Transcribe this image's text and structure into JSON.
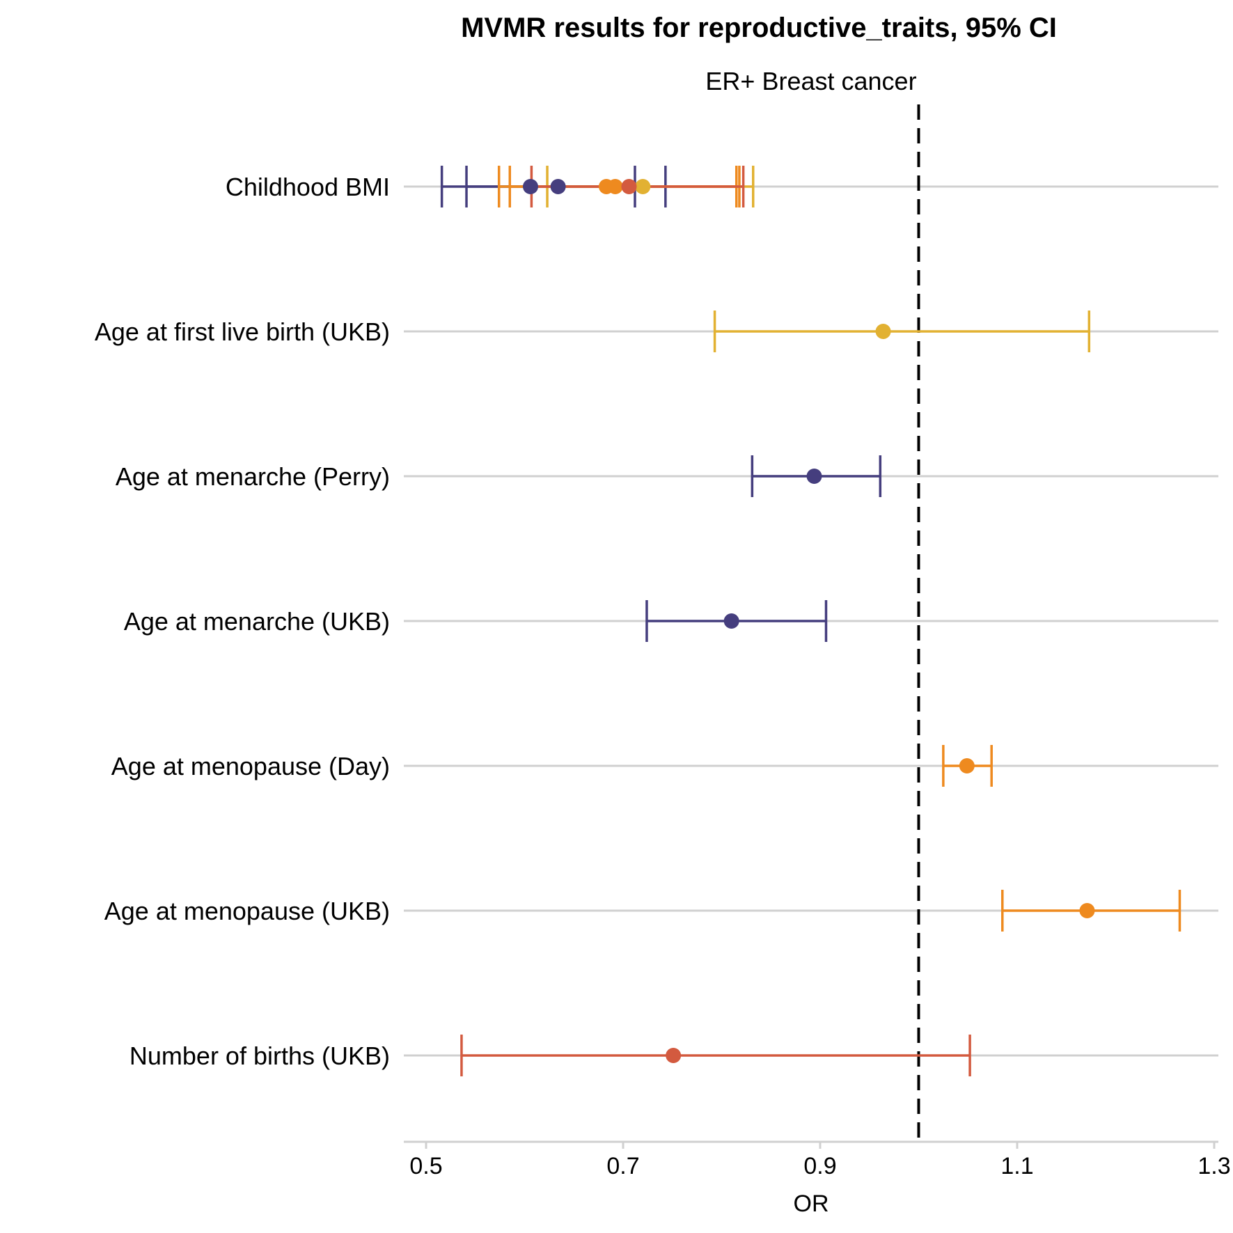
{
  "chart_data": {
    "type": "forest",
    "title": "MVMR results for reproductive_traits, 95% CI",
    "subtitle": "ER+ Breast cancer",
    "xlabel": "OR",
    "ylabel": "",
    "xlim": [
      0.48,
      1.3
    ],
    "x_ticks": [
      0.5,
      0.7,
      0.9,
      1.1,
      1.3
    ],
    "x_tick_labels": [
      "0.5",
      "0.7",
      "0.9",
      "1.1",
      "1.3"
    ],
    "reference_line": 1.0,
    "categories": [
      "Childhood BMI",
      "Age at first live birth (UKB)",
      "Age at menarche (Perry)",
      "Age at menarche (UKB)",
      "Age at menopause (Day)",
      "Age at menopause (UKB)",
      "Number of births (UKB)"
    ],
    "colors": {
      "Age at first live birth (UKB)": "#E2B132",
      "Age at menarche (Perry)": "#453E7E",
      "Age at menarche (UKB)": "#453E7E",
      "Age at menopause (Day)": "#EE8A1F",
      "Age at menopause (UKB)": "#EE8A1F",
      "Number of births (UKB)": "#D35A3F"
    },
    "points": [
      {
        "category": "Childhood BMI",
        "adjusted_for": "Age at first live birth (UKB)",
        "or": 0.72,
        "lo": 0.623,
        "hi": 0.832
      },
      {
        "category": "Childhood BMI",
        "adjusted_for": "Age at menarche (Perry)",
        "or": 0.606,
        "lo": 0.516,
        "hi": 0.712
      },
      {
        "category": "Childhood BMI",
        "adjusted_for": "Age at menarche (UKB)",
        "or": 0.634,
        "lo": 0.541,
        "hi": 0.743
      },
      {
        "category": "Childhood BMI",
        "adjusted_for": "Age at menopause (Day)",
        "or": 0.683,
        "lo": 0.574,
        "hi": 0.815
      },
      {
        "category": "Childhood BMI",
        "adjusted_for": "Age at menopause (UKB)",
        "or": 0.692,
        "lo": 0.585,
        "hi": 0.818
      },
      {
        "category": "Childhood BMI",
        "adjusted_for": "Number of births (UKB)",
        "or": 0.706,
        "lo": 0.607,
        "hi": 0.822
      },
      {
        "category": "Age at first live birth (UKB)",
        "or": 0.964,
        "lo": 0.793,
        "hi": 1.173
      },
      {
        "category": "Age at menarche (Perry)",
        "or": 0.894,
        "lo": 0.831,
        "hi": 0.961
      },
      {
        "category": "Age at menarche (UKB)",
        "or": 0.81,
        "lo": 0.724,
        "hi": 0.906
      },
      {
        "category": "Age at menopause (Day)",
        "or": 1.049,
        "lo": 1.025,
        "hi": 1.074
      },
      {
        "category": "Age at menopause (UKB)",
        "or": 1.171,
        "lo": 1.085,
        "hi": 1.265
      },
      {
        "category": "Number of births (UKB)",
        "or": 0.751,
        "lo": 0.536,
        "hi": 1.052
      }
    ],
    "grid": "horizontal-per-row",
    "legend": "none"
  }
}
